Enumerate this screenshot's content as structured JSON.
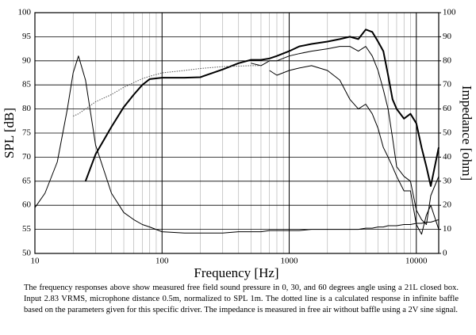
{
  "chart_data": {
    "type": "line",
    "xlabel": "Frequency [Hz]",
    "ylabel": "SPL [dB]",
    "y2label": "Impedance [ohm]",
    "caption": "The frequency responses above show measured free field sound pressure in 0, 30, and 60 degrees angle using a 21L closed box. Input 2.83 VRMS, microphone distance 0.5m, normalized to SPL 1m. The dotted line is a calculated response in infinite baffle based on the parameters given for this specific driver. The impedance is measured in free air without baffle using a 2V sine signal.",
    "xscale": "log",
    "xlim": [
      10,
      15000
    ],
    "xticks": [
      10,
      100,
      1000,
      10000
    ],
    "xminorticks": [
      20,
      30,
      40,
      50,
      60,
      70,
      80,
      90,
      200,
      300,
      400,
      500,
      600,
      700,
      800,
      900,
      2000,
      3000,
      4000,
      5000,
      6000,
      7000,
      8000,
      9000
    ],
    "ylim": [
      50,
      100
    ],
    "yticks": [
      50,
      55,
      60,
      65,
      70,
      75,
      80,
      85,
      90,
      95,
      100
    ],
    "y2lim": [
      0,
      100
    ],
    "y2ticks": [
      0,
      10,
      20,
      30,
      40,
      50,
      60,
      70,
      80,
      90,
      100
    ],
    "grid": true,
    "x": [
      10,
      12,
      15,
      18,
      20,
      22,
      25,
      30,
      40,
      50,
      60,
      70,
      80,
      100,
      150,
      200,
      300,
      400,
      500,
      600,
      700,
      800,
      1000,
      1200,
      1500,
      2000,
      2500,
      3000,
      3500,
      4000,
      4500,
      5000,
      5500,
      6000,
      6500,
      7000,
      8000,
      9000,
      10000,
      11000,
      12000,
      13000,
      15000
    ],
    "series": [
      {
        "color": "#000000",
        "width": 2,
        "style": "solid",
        "values": [
          null,
          null,
          null,
          null,
          null,
          null,
          65,
          70.6,
          76.3,
          80.4,
          83,
          85,
          86.2,
          86.5,
          86.5,
          86.6,
          88.2,
          89.5,
          90.2,
          90.2,
          90.5,
          91,
          92,
          93,
          93.5,
          94,
          94.5,
          95,
          94.5,
          96.5,
          96,
          94,
          92,
          87,
          82,
          80,
          78,
          79,
          77,
          72,
          68,
          64,
          72
        ]
      },
      {
        "color": "#000000",
        "width": 1,
        "style": "solid",
        "values": [
          null,
          null,
          null,
          null,
          null,
          null,
          null,
          null,
          null,
          null,
          null,
          null,
          null,
          null,
          null,
          null,
          null,
          null,
          89.5,
          89,
          90,
          90,
          91,
          91.5,
          92,
          92.5,
          93,
          93,
          92,
          93,
          91,
          88,
          84,
          80,
          74,
          68,
          66,
          65,
          59,
          57,
          56,
          62,
          66
        ]
      },
      {
        "color": "#000000",
        "width": 1,
        "style": "solid",
        "values": [
          null,
          null,
          null,
          null,
          null,
          null,
          null,
          null,
          null,
          null,
          null,
          null,
          null,
          null,
          null,
          null,
          null,
          null,
          null,
          null,
          88,
          87,
          88,
          88.5,
          89,
          88,
          86,
          82,
          80,
          81,
          79,
          76,
          72,
          70,
          68,
          66,
          63,
          63,
          56,
          54,
          58,
          60,
          55
        ]
      },
      {
        "color": "#555555",
        "width": 1,
        "style": "dotted",
        "values": [
          null,
          null,
          null,
          null,
          78.5,
          79,
          80,
          81.5,
          83,
          84.5,
          85.5,
          86.3,
          86.8,
          87.5,
          88,
          88.4,
          88.8,
          88.9,
          89,
          89,
          null,
          null,
          null,
          null,
          null,
          null,
          null,
          null,
          null,
          null,
          null,
          null,
          null,
          null,
          null,
          null,
          null,
          null,
          null,
          null,
          null,
          null,
          null
        ]
      },
      {
        "color": "#000000",
        "width": 1,
        "style": "solid",
        "axis": "y2",
        "values": [
          19,
          25,
          38,
          60,
          75,
          82,
          72,
          45,
          25,
          17,
          14,
          12,
          11,
          9,
          8.5,
          8.5,
          8.5,
          9,
          9,
          9,
          9.5,
          9.5,
          9.5,
          9.5,
          10,
          10,
          10,
          10,
          10,
          10.5,
          10.5,
          11,
          11,
          11.5,
          11.5,
          11.5,
          12,
          12,
          12.5,
          12.5,
          13,
          13,
          14
        ]
      }
    ]
  }
}
